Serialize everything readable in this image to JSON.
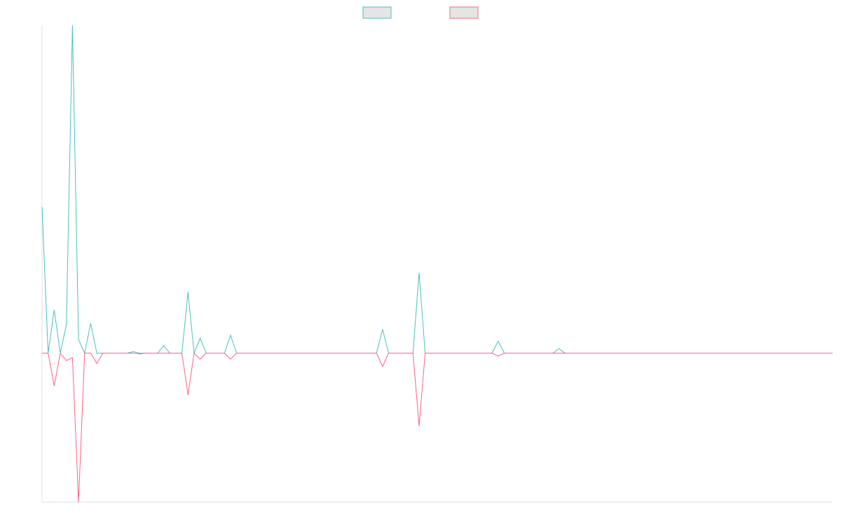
{
  "chart_data": {
    "type": "line",
    "title": "",
    "xlabel": "",
    "ylabel": "",
    "legend": {
      "position": "top-center"
    },
    "grid": false,
    "ylim": [
      -1.0,
      2.2
    ],
    "x": [
      0,
      1,
      2,
      3,
      4,
      5,
      6,
      7,
      8,
      9,
      10,
      11,
      12,
      13,
      14,
      15,
      16,
      17,
      18,
      19,
      20,
      21,
      22,
      23,
      24,
      25,
      26,
      27,
      28,
      29,
      30,
      31,
      32,
      33,
      34,
      35,
      36,
      37,
      38,
      39,
      40,
      41,
      42,
      43,
      44,
      45,
      46,
      47,
      48,
      49,
      50,
      51,
      52,
      53,
      54,
      55,
      56,
      57,
      58,
      59,
      60,
      61,
      62,
      63,
      64,
      65,
      66,
      67,
      68,
      69,
      70,
      71,
      72,
      73,
      74,
      75,
      76,
      77,
      78,
      79,
      80,
      81,
      82,
      83,
      84,
      85,
      86,
      87,
      88,
      89,
      90,
      91,
      92,
      93,
      94,
      95,
      96,
      97,
      98,
      99,
      100,
      101,
      102,
      103,
      104,
      105,
      106,
      107,
      108,
      109,
      110,
      111,
      112,
      113,
      114,
      115,
      116,
      117,
      118,
      119,
      120,
      121,
      122,
      123,
      124,
      125,
      126,
      127,
      128,
      129,
      130
    ],
    "series": [
      {
        "name": "",
        "color": "#4bc0c0",
        "fill": "#e5e5e5",
        "values": [
          0.98,
          0,
          0.29,
          0,
          0.19,
          2.2,
          0.09,
          0,
          0.2,
          0,
          0,
          0,
          0,
          0,
          0,
          0.01,
          0,
          0,
          0,
          0,
          0.05,
          0,
          0,
          0,
          0.41,
          0,
          0.1,
          0,
          0,
          0,
          0,
          0.12,
          0,
          0,
          0,
          0,
          0,
          0,
          0,
          0,
          0,
          0,
          0,
          0,
          0,
          0,
          0,
          0,
          0,
          0,
          0,
          0,
          0,
          0,
          0,
          0,
          0.16,
          0,
          0,
          0,
          0,
          0,
          0.54,
          0,
          0,
          0,
          0,
          0,
          0,
          0,
          0,
          0,
          0,
          0,
          0,
          0.08,
          0,
          0,
          0,
          0,
          0,
          0,
          0,
          0,
          0,
          0.03,
          0,
          0,
          0,
          0,
          0,
          0,
          0,
          0,
          0,
          0,
          0,
          0,
          0,
          0,
          0,
          0,
          0,
          0,
          0,
          0,
          0,
          0,
          0,
          0,
          0,
          0,
          0,
          0,
          0,
          0,
          0,
          0,
          0,
          0,
          0,
          0,
          0,
          0,
          0,
          0,
          0,
          0,
          0,
          0,
          0
        ]
      },
      {
        "name": "",
        "color": "#ff6384",
        "fill": "#e5e5e5",
        "values": [
          0,
          0,
          -0.22,
          0,
          -0.05,
          -0.03,
          -1.0,
          0,
          0,
          -0.07,
          0,
          0,
          0,
          0,
          0,
          0,
          -0.005,
          0,
          0,
          0,
          0,
          0,
          0,
          0,
          -0.28,
          0,
          -0.04,
          0,
          0,
          0,
          0,
          -0.04,
          0,
          0,
          0,
          0,
          0,
          0,
          0,
          0,
          0,
          0,
          0,
          0,
          0,
          0,
          0,
          0,
          0,
          0,
          0,
          0,
          0,
          0,
          0,
          0,
          -0.09,
          0,
          0,
          0,
          0,
          0,
          -0.49,
          0,
          0,
          0,
          0,
          0,
          0,
          0,
          0,
          0,
          0,
          0,
          0,
          -0.02,
          0,
          0,
          0,
          0,
          0,
          0,
          0,
          0,
          0,
          0,
          0,
          0,
          0,
          0,
          0,
          0,
          0,
          0,
          0,
          0,
          0,
          0,
          0,
          0,
          0,
          0,
          0,
          0,
          0,
          0,
          0,
          0,
          0,
          0,
          0,
          0,
          0,
          0,
          0,
          0,
          0,
          0,
          0,
          0,
          0,
          0,
          0,
          0,
          0,
          0,
          0,
          0,
          0,
          0,
          0
        ]
      }
    ]
  }
}
